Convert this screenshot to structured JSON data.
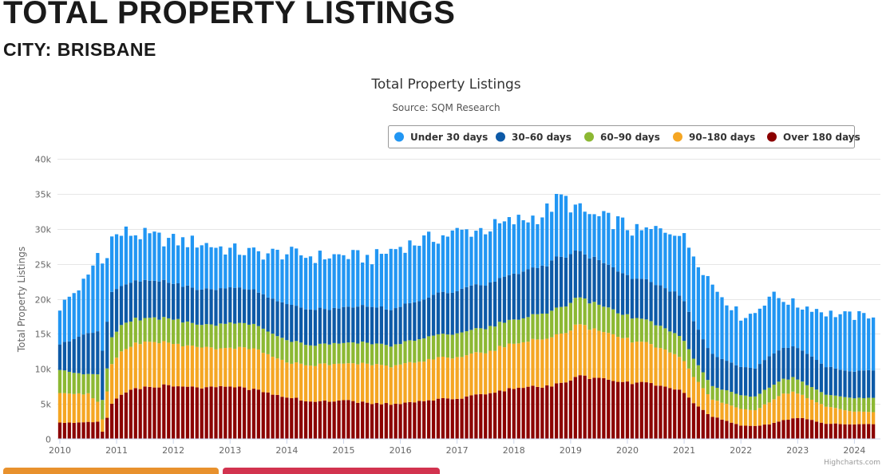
{
  "page": {
    "heading": "TOTAL PROPERTY LISTINGS",
    "subheading": "CITY: BRISBANE"
  },
  "colors": {
    "under_30": "#2196f3",
    "d30_60": "#0d5aa7",
    "d60_90": "#8cb833",
    "d90_180": "#f5a623",
    "over_180": "#8b0000"
  },
  "chart_data": {
    "type": "bar",
    "stacked": true,
    "title": "Total Property Listings",
    "subtitle": "Source: SQM Research",
    "ylabel": "Total Property Listings",
    "xlabel": "",
    "ylim": [
      0,
      40000
    ],
    "yticks": [
      0,
      5000,
      10000,
      15000,
      20000,
      25000,
      30000,
      35000,
      40000
    ],
    "ytick_labels": [
      "0",
      "5k",
      "10k",
      "15k",
      "20k",
      "25k",
      "30k",
      "35k",
      "40k"
    ],
    "xticks": [
      "2010",
      "2011",
      "2012",
      "2013",
      "2014",
      "2015",
      "2016",
      "2017",
      "2018",
      "2019",
      "2020",
      "2021",
      "2022",
      "2023",
      "2024"
    ],
    "x_start": "2010-01",
    "x_end": "2024-05",
    "legend_position": "top-right",
    "credit": "Highcharts.com",
    "series_names": [
      "Under 30 days",
      "30–60 days",
      "60–90 days",
      "90–180 days",
      "Over 180 days"
    ],
    "anchor_months": [
      "2010-01",
      "2010-07",
      "2010-09",
      "2010-10",
      "2010-12",
      "2011-03",
      "2011-07",
      "2012-01",
      "2012-07",
      "2013-01",
      "2013-07",
      "2014-01",
      "2014-07",
      "2015-01",
      "2015-07",
      "2016-01",
      "2016-07",
      "2017-01",
      "2017-07",
      "2018-01",
      "2018-07",
      "2018-11",
      "2019-03",
      "2019-07",
      "2019-11",
      "2020-03",
      "2020-07",
      "2020-11",
      "2021-01",
      "2021-04",
      "2021-07",
      "2022-01",
      "2022-04",
      "2022-07",
      "2022-10",
      "2023-01",
      "2023-04",
      "2023-07",
      "2024-01",
      "2024-05"
    ],
    "anchor_totals": [
      18800,
      23000,
      26500,
      25000,
      28700,
      29500,
      29000,
      28300,
      28000,
      27000,
      26500,
      26500,
      26000,
      26200,
      25800,
      27500,
      28500,
      29500,
      30000,
      31000,
      32000,
      34500,
      32500,
      31500,
      31000,
      29500,
      29800,
      30000,
      28500,
      25500,
      22000,
      17500,
      18000,
      20500,
      20000,
      19000,
      18800,
      18000,
      17500,
      17800
    ],
    "anchor_stacks": {
      "over_180": [
        2300,
        2400,
        2500,
        1000,
        5000,
        6800,
        7300,
        7700,
        7300,
        7400,
        7000,
        6000,
        5200,
        5600,
        5000,
        5000,
        5500,
        5800,
        6500,
        7200,
        7500,
        7800,
        9000,
        8500,
        8200,
        8000,
        7800,
        7200,
        6500,
        4500,
        3200,
        1900,
        1800,
        2100,
        2700,
        3000,
        2700,
        2200,
        2100,
        2100
      ],
      "d90_180": [
        4200,
        4000,
        2800,
        1800,
        5800,
        6200,
        6500,
        6000,
        5700,
        5400,
        5800,
        5000,
        5200,
        5300,
        5500,
        5500,
        5800,
        6000,
        6000,
        6400,
        6700,
        7200,
        7300,
        6800,
        6500,
        5800,
        5400,
        5000,
        4500,
        3500,
        2400,
        2400,
        2200,
        3200,
        3900,
        3600,
        2800,
        2500,
        1800,
        1700
      ],
      "d60_90": [
        3300,
        2700,
        4000,
        2800,
        3800,
        3700,
        3400,
        3500,
        3200,
        3600,
        3400,
        3200,
        2900,
        2900,
        3000,
        3000,
        3300,
        3400,
        3500,
        3400,
        3600,
        3800,
        3900,
        3800,
        3400,
        3300,
        3200,
        3000,
        2900,
        2400,
        1900,
        1900,
        2000,
        2100,
        2100,
        2000,
        1800,
        1700,
        1900,
        2000
      ],
      "d30_60": [
        3700,
        6000,
        6000,
        7000,
        6300,
        5400,
        5400,
        5200,
        5000,
        5000,
        4900,
        5200,
        5000,
        5100,
        5200,
        5200,
        5600,
        6200,
        6300,
        6500,
        6800,
        7200,
        6500,
        6200,
        6000,
        5500,
        5800,
        5800,
        5600,
        5000,
        4500,
        4000,
        4000,
        4500,
        4500,
        4400,
        4500,
        4000,
        3800,
        4000
      ]
    }
  }
}
